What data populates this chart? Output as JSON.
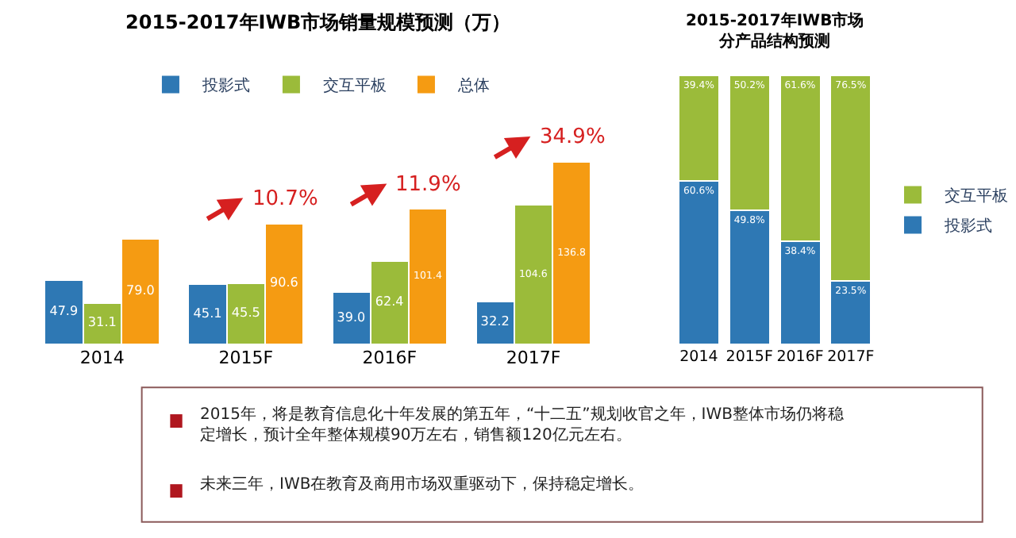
{
  "chart_data": [
    {
      "type": "bar",
      "title": "2015-2017年IWB市场销量规模预测（万）",
      "categories": [
        "2014",
        "2015F",
        "2016F",
        "2017F"
      ],
      "data_labels": true,
      "legend": "top",
      "series": [
        {
          "name": "投影式",
          "color": "#2e78b4",
          "values": [
            47.9,
            45.1,
            39.0,
            32.2
          ],
          "value_labels": [
            "47.9",
            "45.1",
            "39.0",
            "32.2"
          ]
        },
        {
          "name": "交互平板",
          "color": "#9bbb3a",
          "values": [
            31.1,
            45.5,
            62.4,
            104.6
          ],
          "value_labels": [
            "31.1",
            "45.5",
            "62.4",
            "104.6"
          ]
        },
        {
          "name": "总体",
          "color": "#f59b12",
          "values": [
            79.0,
            90.6,
            101.4,
            136.8
          ],
          "value_labels": [
            "79.0",
            "90.6",
            "101.4",
            "136.8"
          ]
        }
      ],
      "annotations": [
        "10.7%",
        "11.9%",
        "34.9%"
      ]
    },
    {
      "type": "bar",
      "title": "2015-2017年IWB市场分产品结构预测",
      "categories": [
        "2014",
        "2015F",
        "2016F",
        "2017F"
      ],
      "stacked": true,
      "data_labels": true,
      "legend": "right",
      "series": [
        {
          "name": "投影式",
          "color": "#2e78b4",
          "values": [
            60.6,
            49.8,
            38.4,
            23.5
          ],
          "value_labels": [
            "60.6%",
            "49.8%",
            "38.4%",
            "23.5%"
          ]
        },
        {
          "name": "交互平板",
          "color": "#9bbb3a",
          "values": [
            39.4,
            50.2,
            61.6,
            76.5
          ],
          "value_labels": [
            "39.4%",
            "50.2%",
            "61.6%",
            "76.5%"
          ]
        }
      ]
    },
    {
      "type": "other",
      "annotations": [
        "2015年，将是教育信息化十年发展的第五年，“十二五”规划收官之年，IWB整体市场仍将稳定增长，预计全年整体规模90万左右，销售额120亿元左右。",
        "未来三年，IWB在教育及商用市场双重驱动下，保持稳定增长。"
      ]
    }
  ]
}
